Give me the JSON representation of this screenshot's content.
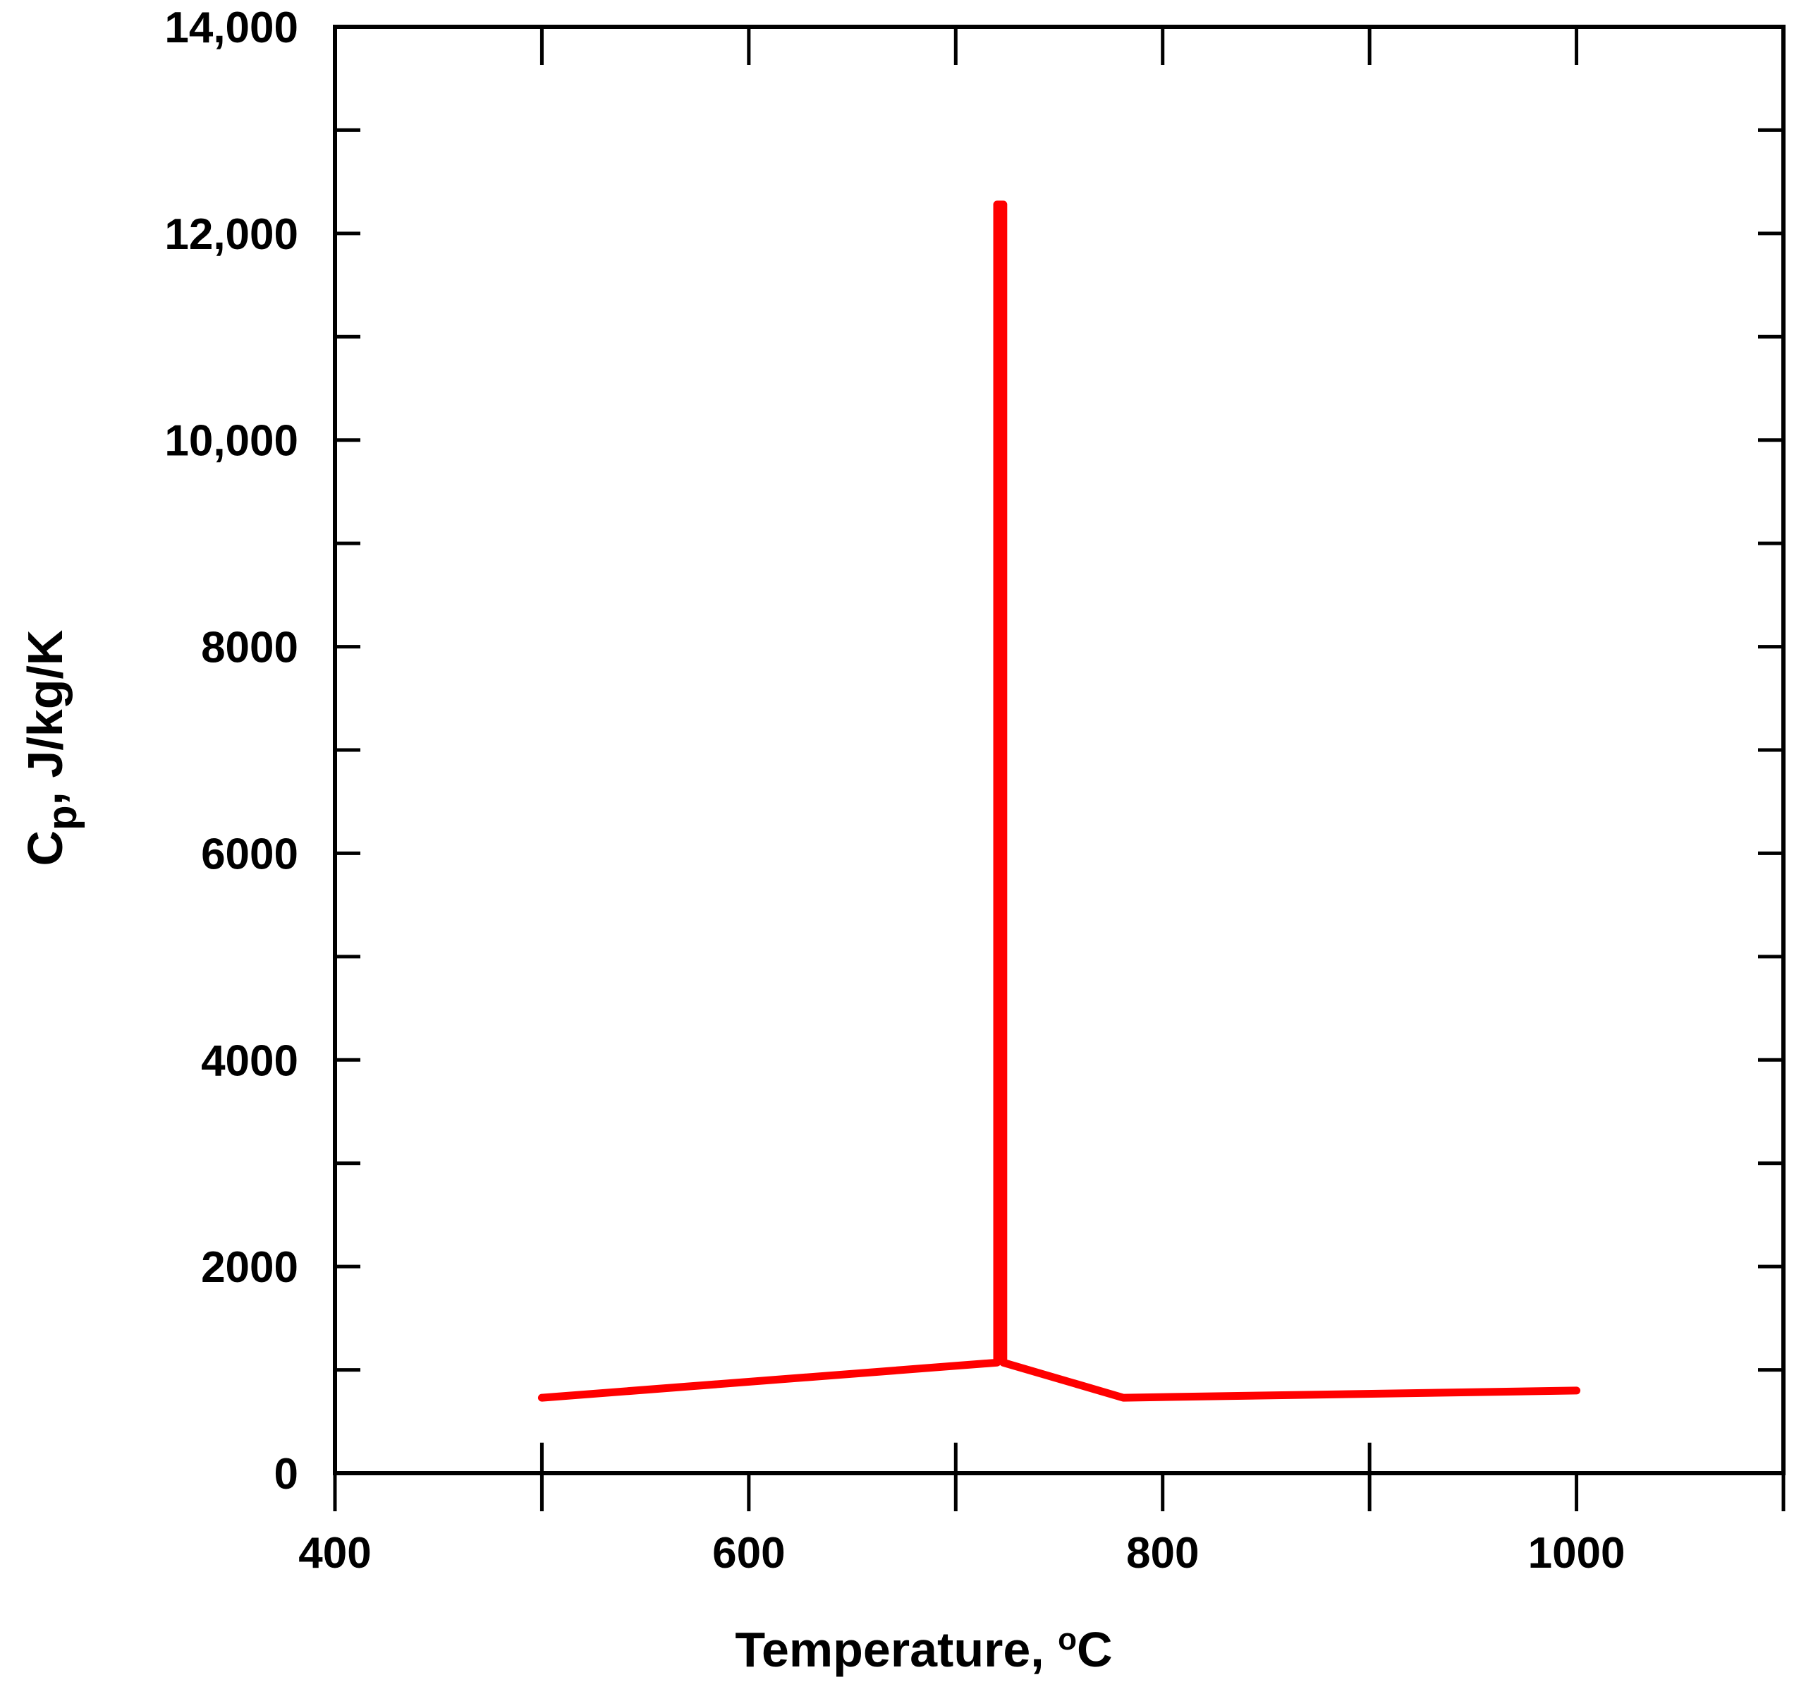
{
  "chart_data": {
    "type": "line",
    "title": "",
    "xlabel_main": "Temperature, ",
    "xlabel_deg": "o",
    "xlabel_unit": "C",
    "ylabel_main": "C",
    "ylabel_sub": "p",
    "ylabel_unit": ", J/kg/K",
    "xlim": [
      400,
      1100
    ],
    "ylim": [
      0,
      14000
    ],
    "x_ticks": [
      400,
      600,
      800,
      1000
    ],
    "x_tick_labels": [
      "400",
      "600",
      "800",
      "1000"
    ],
    "x_minor_ticks": [
      500,
      700,
      900,
      1100
    ],
    "y_ticks": [
      0,
      2000,
      4000,
      6000,
      8000,
      10000,
      12000,
      14000
    ],
    "y_tick_labels": [
      "0",
      "2000",
      "4000",
      "6000",
      "8000",
      "10,000",
      "12,000",
      "14,000"
    ],
    "y_minor_ticks": [
      1000,
      3000,
      5000,
      7000,
      9000,
      11000,
      13000
    ],
    "grid": false,
    "series": [
      {
        "color": "#ff0000",
        "x": [
          500,
          720,
          720,
          723,
          723,
          781,
          1000
        ],
        "y": [
          730,
          1070,
          12280,
          12280,
          1070,
          730,
          800
        ]
      }
    ]
  }
}
